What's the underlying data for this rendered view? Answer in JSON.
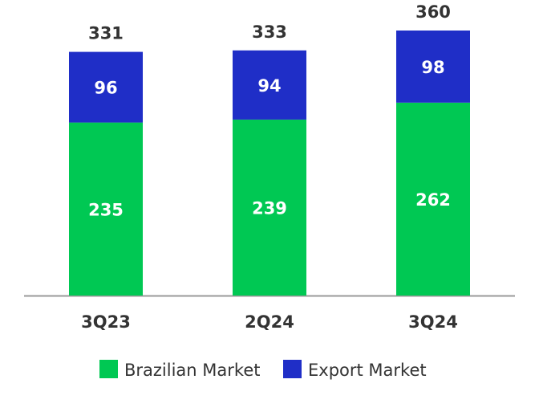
{
  "chart_data": {
    "type": "bar",
    "stacked": true,
    "categories": [
      "3Q23",
      "2Q24",
      "3Q24"
    ],
    "series": [
      {
        "name": "Brazilian Market",
        "values": [
          235,
          239,
          262
        ],
        "color": "#00c853"
      },
      {
        "name": "Export Market",
        "values": [
          96,
          94,
          98
        ],
        "color": "#1f2ec7"
      }
    ],
    "totals": [
      331,
      333,
      360
    ],
    "ylim": [
      0,
      360
    ],
    "grid": false,
    "legend_position": "bottom"
  }
}
